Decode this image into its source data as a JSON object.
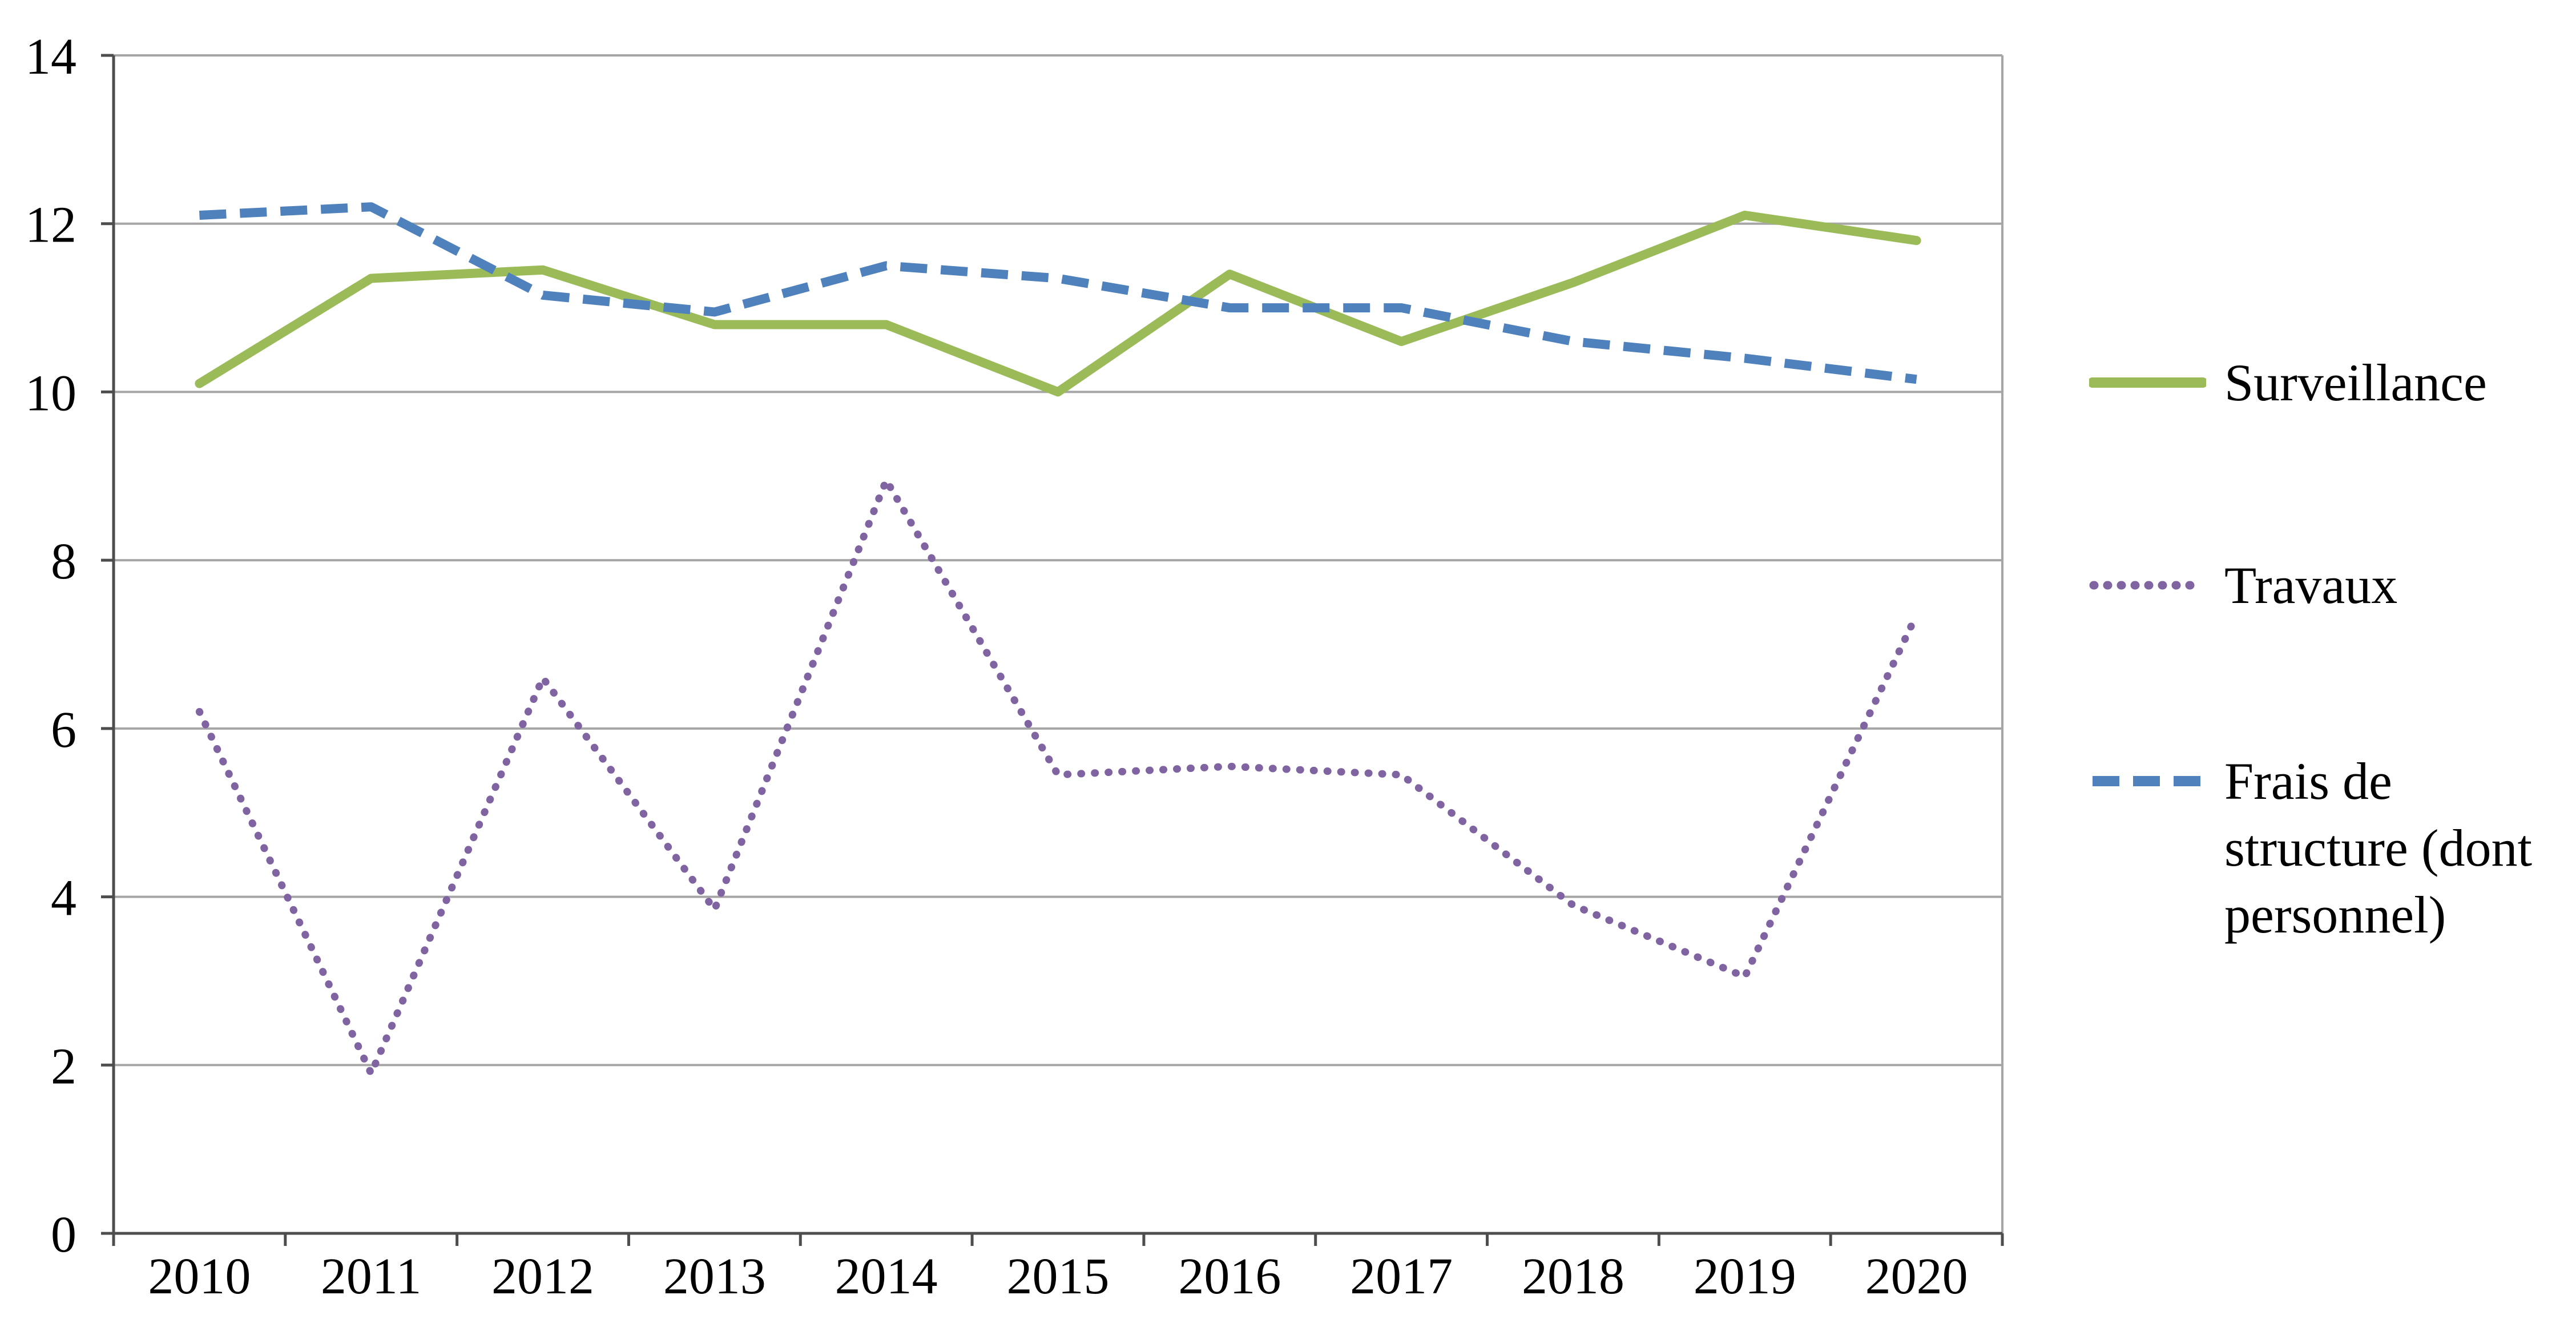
{
  "chart_data": {
    "type": "line",
    "title": "",
    "xlabel": "",
    "ylabel": "",
    "categories": [
      "2010",
      "2011",
      "2012",
      "2013",
      "2014",
      "2015",
      "2016",
      "2017",
      "2018",
      "2019",
      "2020"
    ],
    "series": [
      {
        "id": "surveillance",
        "name": "Surveillance",
        "color": "#9BBB59",
        "dash": "",
        "cap": "round",
        "width": 16,
        "values": [
          10.1,
          11.35,
          11.45,
          10.8,
          10.8,
          10.0,
          11.4,
          10.6,
          11.3,
          12.1,
          11.8
        ]
      },
      {
        "id": "travaux",
        "name": "Travaux",
        "color": "#8064A2",
        "dash": "1 23",
        "cap": "round",
        "width": 13,
        "values": [
          6.2,
          1.9,
          6.6,
          3.85,
          8.95,
          5.45,
          5.55,
          5.45,
          3.9,
          3.05,
          7.35
        ]
      },
      {
        "id": "frais-de-structure",
        "name": "Frais de structure (dont personnel)",
        "color": "#4F81BD",
        "dash": "47 24",
        "cap": "butt",
        "width": 16,
        "values": [
          12.1,
          12.2,
          11.15,
          10.95,
          11.5,
          11.35,
          11.0,
          11.0,
          10.6,
          10.4,
          10.15
        ]
      }
    ],
    "ylim": [
      0,
      14
    ],
    "yticks": [
      0,
      2,
      4,
      6,
      8,
      10,
      12,
      14
    ],
    "grid": "horizontal",
    "legend_position": "right",
    "colors": {
      "gridline": "#A6A6A6",
      "axis": "#4D4D4D",
      "text": "#000000",
      "background": "#FFFFFF"
    }
  },
  "legend": {
    "items": [
      {
        "label": "Surveillance"
      },
      {
        "label": "Travaux"
      },
      {
        "label": "Frais de\nstructure (dont\npersonnel)"
      }
    ]
  }
}
